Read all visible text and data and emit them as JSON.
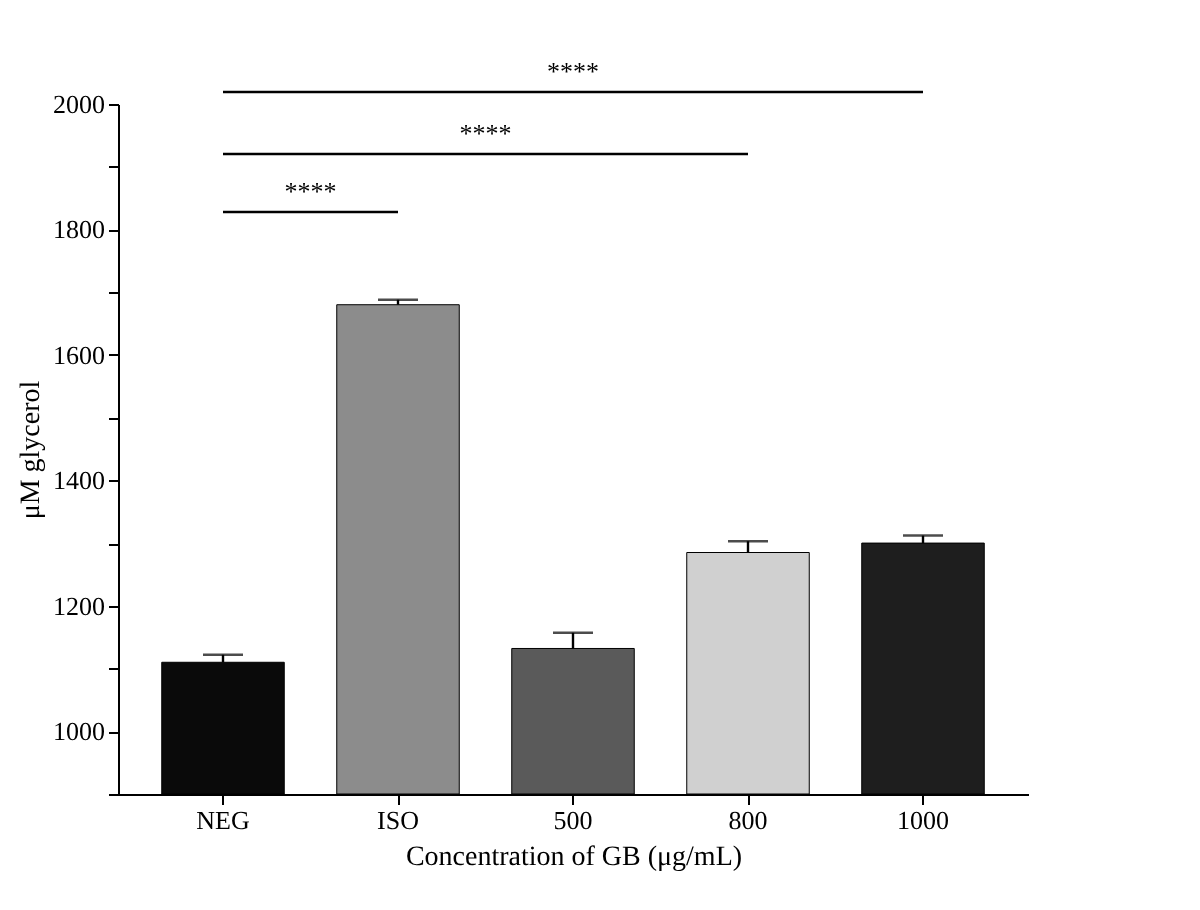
{
  "chart_data": {
    "type": "bar",
    "xlabel": "Concentration of GB (μg/mL)",
    "ylabel": "μM glycerol",
    "categories": [
      "NEG",
      "ISO",
      "500",
      "800",
      "1000"
    ],
    "values": [
      1110,
      1680,
      1132,
      1285,
      1300
    ],
    "errors": [
      12,
      8,
      25,
      18,
      12
    ],
    "colors": [
      "#0a0a0a",
      "#8c8c8c",
      "#5a5a5a",
      "#d0d0d0",
      "#1e1e1e"
    ],
    "ylim": [
      900,
      2000
    ],
    "yticks": [
      {
        "value": 900,
        "label": null
      },
      1000,
      {
        "value": 1100,
        "label": null
      },
      1200,
      {
        "value": 1300,
        "label": null
      },
      1400,
      {
        "value": 1500,
        "label": null
      },
      1600,
      {
        "value": 1700,
        "label": null
      },
      1800,
      {
        "value": 1900,
        "label": null
      },
      2000
    ],
    "annotations": [
      "****",
      "****",
      "****"
    ],
    "grid": false
  }
}
